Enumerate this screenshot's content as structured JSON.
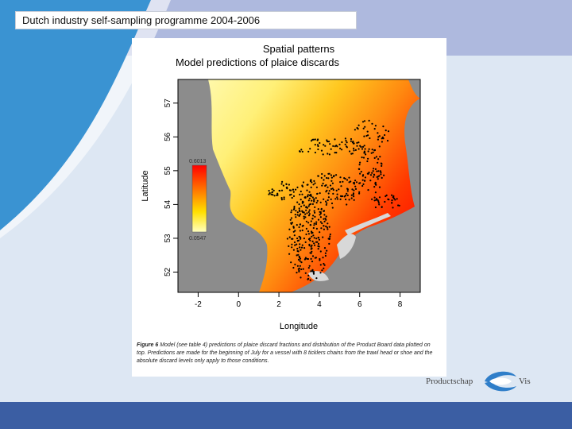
{
  "slide": {
    "title": "Dutch industry self-sampling programme 2004-2006",
    "heading_line1": "Spatial patterns",
    "heading_line2": "Model predictions of plaice discards",
    "caption_label": "Figure 6",
    "caption_text": "Model (see table 4) predictions of plaice discard fractions and distribution of the Product Board data plotted on top. Predictions are made for the beginning of July for a vessel with 8 ticklers chains from the trawl head or shoe and the absolute discard levels only apply to those conditions.",
    "logo_left": "Productschap",
    "logo_right": "Vis"
  },
  "chart_data": {
    "type": "heatmap",
    "xlabel": "Longitude",
    "ylabel": "Latitude",
    "xlim": [
      -3,
      9
    ],
    "ylim": [
      51.4,
      57.7
    ],
    "x_ticks": [
      -2,
      0,
      2,
      4,
      6,
      8
    ],
    "y_ticks": [
      52,
      53,
      54,
      55,
      56,
      57
    ],
    "legend": {
      "max_label": "0.6013",
      "min_label": "0.0547",
      "placement": "left"
    },
    "colors": {
      "low": "#ffffa0",
      "mid": "#ffd700",
      "high": "#ff2000",
      "land": "#8c8c8c",
      "points": "#000000"
    }
  }
}
